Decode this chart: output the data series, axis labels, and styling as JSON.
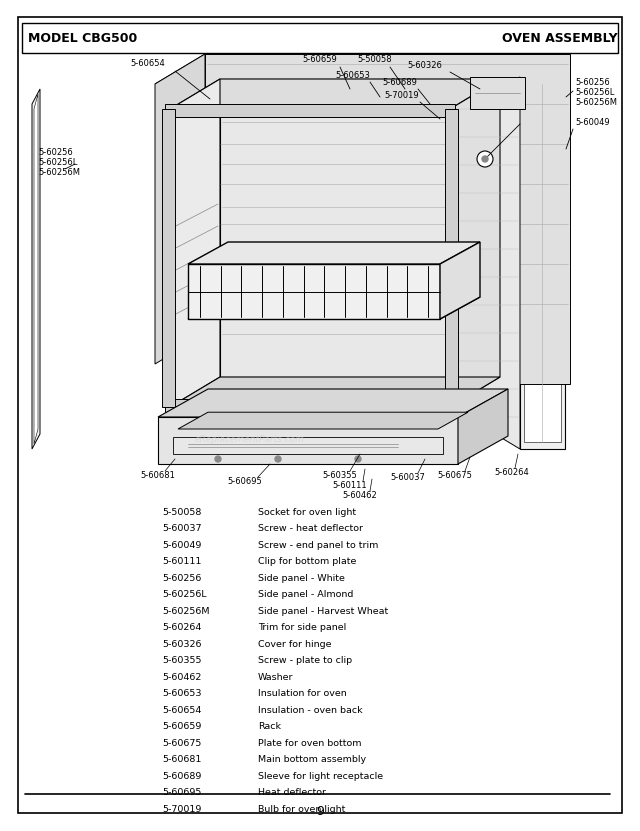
{
  "title_left": "MODEL CBG500",
  "title_right": "OVEN ASSEMBLY",
  "page_number": "9",
  "bg_color": "#ffffff",
  "parts_list": [
    [
      "5-50058",
      "Socket for oven light"
    ],
    [
      "5-60037",
      "Screw - heat deflector"
    ],
    [
      "5-60049",
      "Screw - end panel to trim"
    ],
    [
      "5-60111",
      "Clip for bottom plate"
    ],
    [
      "5-60256",
      "Side panel - White"
    ],
    [
      "5-60256L",
      "Side panel - Almond"
    ],
    [
      "5-60256M",
      "Side panel - Harvest Wheat"
    ],
    [
      "5-60264",
      "Trim for side panel"
    ],
    [
      "5-60326",
      "Cover for hinge"
    ],
    [
      "5-60355",
      "Screw - plate to clip"
    ],
    [
      "5-60462",
      "Washer"
    ],
    [
      "5-60653",
      "Insulation for oven"
    ],
    [
      "5-60654",
      "Insulation - oven back"
    ],
    [
      "5-60659",
      "Rack"
    ],
    [
      "5-60675",
      "Plate for oven bottom"
    ],
    [
      "5-60681",
      "Main bottom assembly"
    ],
    [
      "5-60689",
      "Sleeve for light receptacle"
    ],
    [
      "5-60695",
      "Heat deflector"
    ],
    [
      "5-70019",
      "Bulb for oven light"
    ]
  ]
}
